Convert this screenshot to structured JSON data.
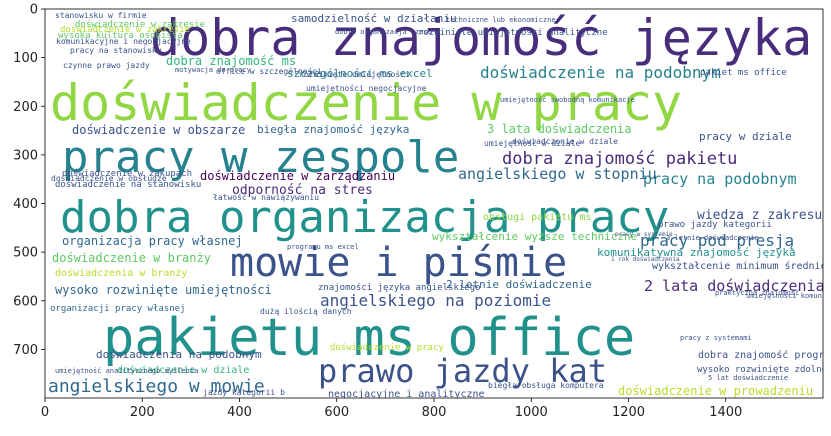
{
  "plot": {
    "kind": "word cloud image on matplotlib axes",
    "x_ticks": [
      0,
      200,
      400,
      600,
      800,
      1000,
      1200,
      1400
    ],
    "y_ticks": [
      0,
      100,
      200,
      300,
      400,
      500,
      600,
      700
    ],
    "image_width": 1600,
    "image_height": 800,
    "background": "#ffffff",
    "palette": [
      "#440154",
      "#3b528b",
      "#21918c",
      "#5ec962",
      "#b5de2b",
      "#fde725",
      "#31688e",
      "#35b779",
      "#472d7b",
      "#26828e",
      "#90d743"
    ]
  },
  "words": [
    {
      "text": "dobra znajomość języka",
      "color": "#472d7b"
    },
    {
      "text": "doświadczenie w pracy",
      "color": "#90d743"
    },
    {
      "text": "pracy w zespole",
      "color": "#26828e"
    },
    {
      "text": "dobra organizacja pracy",
      "color": "#21918c"
    },
    {
      "text": "mowie i piśmie",
      "color": "#3b528b"
    },
    {
      "text": "pakietu ms office",
      "color": "#21918c"
    },
    {
      "text": "prawo jazdy kat",
      "color": "#3b528b"
    },
    {
      "text": "dobra znajomość pakietu",
      "color": "#472d7b"
    },
    {
      "text": "doświadczenie na podobnym",
      "color": "#26828e"
    },
    {
      "text": "angielskiego w mowie",
      "color": "#31688e"
    },
    {
      "text": "angielskiego na poziomie",
      "color": "#3b528b"
    },
    {
      "text": "pracy pod presją",
      "color": "#31688e"
    },
    {
      "text": "pracy na podobnym",
      "color": "#26828e"
    },
    {
      "text": "2 lata doświadczenia",
      "color": "#472d7b"
    },
    {
      "text": "angielskiego w stopniu",
      "color": "#31688e"
    },
    {
      "text": "organizacja pracy własnej",
      "color": "#31688e"
    },
    {
      "text": "wysoko rozwinięte umiejętności",
      "color": "#31688e"
    },
    {
      "text": "odporność na stres",
      "color": "#472d7b"
    },
    {
      "text": "doświadczenie w obszarze",
      "color": "#3b528b"
    },
    {
      "text": "doświadczenie w zarządzaniu",
      "color": "#440154"
    },
    {
      "text": "samodzielność w działaniu",
      "color": "#3b528b"
    },
    {
      "text": "szczególności ms excel",
      "color": "#26828e"
    },
    {
      "text": "dobra znajomość ms",
      "color": "#35b779"
    },
    {
      "text": "biegła znajomość języka",
      "color": "#31688e"
    },
    {
      "text": "3 lata doświadczenia",
      "color": "#5ec962"
    },
    {
      "text": "doświadczenia na podobnym",
      "color": "#3b528b"
    },
    {
      "text": "doświadczenie w branży",
      "color": "#5ec962"
    },
    {
      "text": "doświadczenia w branży",
      "color": "#b5de2b"
    },
    {
      "text": "doświadczenie w prowadzeniu",
      "color": "#b5de2b"
    },
    {
      "text": "wiedza z zakresu",
      "color": "#3b528b"
    },
    {
      "text": "komunikatywna znajomość języka",
      "color": "#21918c"
    },
    {
      "text": "wykształcenie wyższe techniczne",
      "color": "#5ec962"
    },
    {
      "text": "wykształcenie minimum średnie",
      "color": "#3b528b"
    },
    {
      "text": "2 letnie doświadczenie",
      "color": "#31688e"
    },
    {
      "text": "dobra znajomość programu",
      "color": "#3b528b"
    },
    {
      "text": "wysoko rozwinięte zdolności",
      "color": "#3b528b"
    },
    {
      "text": "doświadczenie w dziale",
      "color": "#35b779"
    },
    {
      "text": "negocjacyjne i analityczne",
      "color": "#3b528b"
    },
    {
      "text": "znajomości języka angielskiego",
      "color": "#3b528b"
    },
    {
      "text": "doświadczenie w zakresie",
      "color": "#5ec962"
    },
    {
      "text": "pracy w dziale",
      "color": "#3b528b"
    },
    {
      "text": "pakiet ms office",
      "color": "#3b528b"
    },
    {
      "text": "prawo jazdy kategorii",
      "color": "#3b528b"
    },
    {
      "text": "obsługi pakietu ms",
      "color": "#90d743"
    },
    {
      "text": "doświadczenie na stanowisku",
      "color": "#3b528b"
    },
    {
      "text": "doświadczenie w zakupach",
      "color": "#3b528b"
    },
    {
      "text": "organizacji pracy własnej",
      "color": "#31688e"
    },
    {
      "text": "dużą ilością danych",
      "color": "#3b528b"
    },
    {
      "text": "jazdy kategorii b",
      "color": "#3b528b"
    },
    {
      "text": "umiejętność analitycznego myślenia",
      "color": "#3b528b"
    },
    {
      "text": "biegła obsługa komputera",
      "color": "#3b528b"
    },
    {
      "text": "umiejętność w dziale",
      "color": "#3b528b"
    },
    {
      "text": "doświadczenie w dziale",
      "color": "#3b528b"
    },
    {
      "text": "dobra organizacja czasu",
      "color": "#3b528b"
    },
    {
      "text": "rozwinięte umiejętności analityczne",
      "color": "#3b528b"
    },
    {
      "text": "komunikacyjne i negocjacyjne",
      "color": "#3b528b"
    },
    {
      "text": "pracy na stanowisku",
      "color": "#3b528b"
    },
    {
      "text": "umiejętności negocjacyjne",
      "color": "#3b528b"
    },
    {
      "text": "office w szczególności",
      "color": "#3b528b"
    },
    {
      "text": "doświadczenie w pracy",
      "color": "#b5de2b"
    },
    {
      "text": "umiejętność swobodną komunikacje",
      "color": "#3b528b"
    },
    {
      "text": "stanowisku w firmie",
      "color": "#3b528b"
    },
    {
      "text": "doświadczenie w zakresie",
      "color": "#b5de2b"
    },
    {
      "text": "wysoka kultura osobista",
      "color": "#5ec962"
    },
    {
      "text": "techniczne lub ekonomiczne",
      "color": "#3b528b"
    },
    {
      "text": "motywacja do pracy",
      "color": "#3b528b"
    },
    {
      "text": "czynne prawo jazdy",
      "color": "#3b528b"
    },
    {
      "text": "łatwość w nawiązywaniu",
      "color": "#3b528b"
    },
    {
      "text": "programu ms excel",
      "color": "#3b528b"
    },
    {
      "text": "rozwinięte umiejętności",
      "color": "#3b528b"
    },
    {
      "text": "doświadczenie w obsłudze",
      "color": "#3b528b"
    },
    {
      "text": "pracy z systemami",
      "color": "#3b528b"
    },
    {
      "text": "5 lat doświadczenie",
      "color": "#3b528b"
    },
    {
      "text": "3 letnie doświadczenie",
      "color": "#3b528b"
    },
    {
      "text": "1 rok doświadczenia",
      "color": "#3b528b"
    },
    {
      "text": "pracy w systemie",
      "color": "#3b528b"
    },
    {
      "text": "umiejętności komunikacyjne",
      "color": "#3b528b"
    },
    {
      "text": "praktyczna znajomość",
      "color": "#3b528b"
    }
  ]
}
